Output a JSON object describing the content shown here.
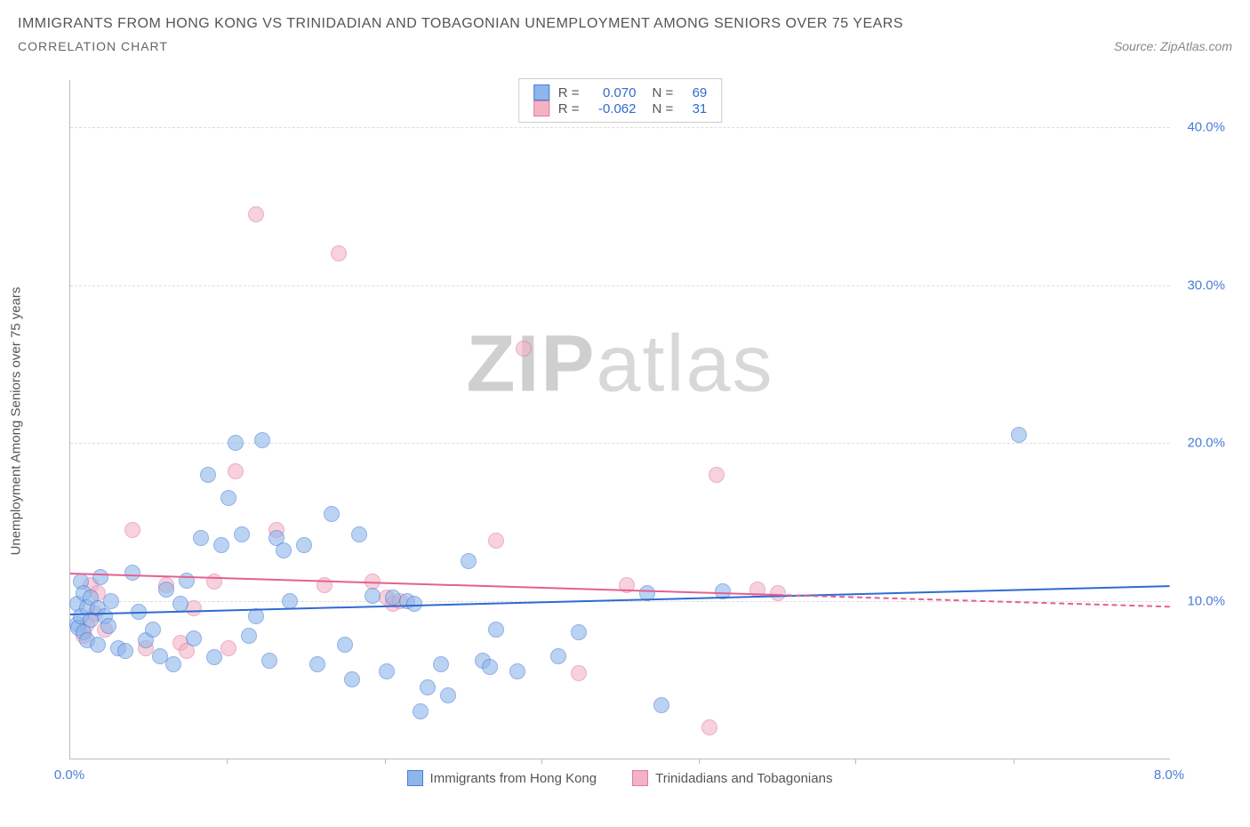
{
  "title": "IMMIGRANTS FROM HONG KONG VS TRINIDADIAN AND TOBAGONIAN UNEMPLOYMENT AMONG SENIORS OVER 75 YEARS",
  "subtitle": "CORRELATION CHART",
  "source_prefix": "Source: ",
  "source": "ZipAtlas.com",
  "ylabel": "Unemployment Among Seniors over 75 years",
  "watermark_a": "ZIP",
  "watermark_b": "atlas",
  "chart": {
    "type": "scatter",
    "background_color": "#ffffff",
    "grid_color": "#dddddd",
    "axis_color": "#bbbbbb",
    "tick_label_color": "#4a7dd6",
    "xlim": [
      0.0,
      8.0
    ],
    "ylim": [
      0.0,
      43.0
    ],
    "xticks": [
      0.0,
      8.0
    ],
    "xtick_labels": [
      "0.0%",
      "8.0%"
    ],
    "x_minor_ticks": [
      1.14,
      2.29,
      3.43,
      4.57,
      5.71,
      6.86
    ],
    "yticks": [
      10.0,
      20.0,
      30.0,
      40.0
    ],
    "ytick_labels": [
      "10.0%",
      "20.0%",
      "30.0%",
      "40.0%"
    ],
    "point_radius": 9,
    "point_opacity": 0.6,
    "series": [
      {
        "name": "Immigrants from Hong Kong",
        "color_fill": "#8fb6ea",
        "color_stroke": "#4a7dd6",
        "R": "0.070",
        "N": "69",
        "trend": {
          "x1": 0.0,
          "y1": 9.2,
          "x2": 8.0,
          "y2": 11.0,
          "solid_to_x": 8.0,
          "color": "#2f6bd0"
        },
        "points": [
          [
            0.05,
            8.5
          ],
          [
            0.05,
            9.8
          ],
          [
            0.06,
            8.3
          ],
          [
            0.08,
            9.0
          ],
          [
            0.08,
            11.2
          ],
          [
            0.1,
            8.0
          ],
          [
            0.1,
            10.5
          ],
          [
            0.12,
            7.5
          ],
          [
            0.12,
            9.6
          ],
          [
            0.15,
            8.8
          ],
          [
            0.15,
            10.2
          ],
          [
            0.2,
            7.2
          ],
          [
            0.2,
            9.5
          ],
          [
            0.22,
            11.5
          ],
          [
            0.25,
            9.0
          ],
          [
            0.28,
            8.4
          ],
          [
            0.3,
            10.0
          ],
          [
            0.35,
            7.0
          ],
          [
            0.4,
            6.8
          ],
          [
            0.45,
            11.8
          ],
          [
            0.5,
            9.3
          ],
          [
            0.55,
            7.5
          ],
          [
            0.6,
            8.2
          ],
          [
            0.65,
            6.5
          ],
          [
            0.7,
            10.7
          ],
          [
            0.75,
            6.0
          ],
          [
            0.8,
            9.8
          ],
          [
            0.85,
            11.3
          ],
          [
            0.9,
            7.6
          ],
          [
            0.95,
            14.0
          ],
          [
            1.0,
            18.0
          ],
          [
            1.05,
            6.4
          ],
          [
            1.1,
            13.5
          ],
          [
            1.15,
            16.5
          ],
          [
            1.2,
            20.0
          ],
          [
            1.25,
            14.2
          ],
          [
            1.3,
            7.8
          ],
          [
            1.35,
            9.0
          ],
          [
            1.4,
            20.2
          ],
          [
            1.45,
            6.2
          ],
          [
            1.5,
            14.0
          ],
          [
            1.55,
            13.2
          ],
          [
            1.6,
            10.0
          ],
          [
            1.7,
            13.5
          ],
          [
            1.8,
            6.0
          ],
          [
            1.9,
            15.5
          ],
          [
            2.0,
            7.2
          ],
          [
            2.05,
            5.0
          ],
          [
            2.1,
            14.2
          ],
          [
            2.2,
            10.3
          ],
          [
            2.3,
            5.5
          ],
          [
            2.35,
            10.2
          ],
          [
            2.45,
            10.0
          ],
          [
            2.5,
            9.8
          ],
          [
            2.55,
            3.0
          ],
          [
            2.6,
            4.5
          ],
          [
            2.7,
            6.0
          ],
          [
            2.75,
            4.0
          ],
          [
            2.9,
            12.5
          ],
          [
            3.0,
            6.2
          ],
          [
            3.05,
            5.8
          ],
          [
            3.1,
            8.2
          ],
          [
            3.25,
            5.5
          ],
          [
            3.55,
            6.5
          ],
          [
            3.7,
            8.0
          ],
          [
            4.2,
            10.5
          ],
          [
            4.3,
            3.4
          ],
          [
            4.75,
            10.6
          ],
          [
            6.9,
            20.5
          ]
        ]
      },
      {
        "name": "Trinidadians and Tobagonians",
        "color_fill": "#f3b3c5",
        "color_stroke": "#e37aa0",
        "R": "-0.062",
        "N": "31",
        "trend": {
          "x1": 0.0,
          "y1": 11.8,
          "x2": 8.0,
          "y2": 9.7,
          "solid_to_x": 5.15,
          "color": "#e46190"
        },
        "points": [
          [
            0.1,
            7.8
          ],
          [
            0.12,
            8.5
          ],
          [
            0.15,
            11.0
          ],
          [
            0.18,
            9.2
          ],
          [
            0.2,
            10.5
          ],
          [
            0.25,
            8.2
          ],
          [
            0.45,
            14.5
          ],
          [
            0.55,
            7.0
          ],
          [
            0.7,
            11.0
          ],
          [
            0.8,
            7.3
          ],
          [
            0.85,
            6.8
          ],
          [
            0.9,
            9.5
          ],
          [
            1.05,
            11.2
          ],
          [
            1.15,
            7.0
          ],
          [
            1.2,
            18.2
          ],
          [
            1.35,
            34.5
          ],
          [
            1.5,
            14.5
          ],
          [
            1.85,
            11.0
          ],
          [
            1.95,
            32.0
          ],
          [
            2.2,
            11.2
          ],
          [
            2.3,
            10.2
          ],
          [
            2.35,
            9.8
          ],
          [
            2.4,
            10.0
          ],
          [
            3.1,
            13.8
          ],
          [
            3.3,
            26.0
          ],
          [
            3.7,
            5.4
          ],
          [
            4.05,
            11.0
          ],
          [
            4.7,
            18.0
          ],
          [
            4.65,
            2.0
          ],
          [
            5.0,
            10.7
          ],
          [
            5.15,
            10.5
          ]
        ]
      }
    ]
  },
  "legend_top": {
    "r_label": "R =",
    "n_label": "N ="
  }
}
